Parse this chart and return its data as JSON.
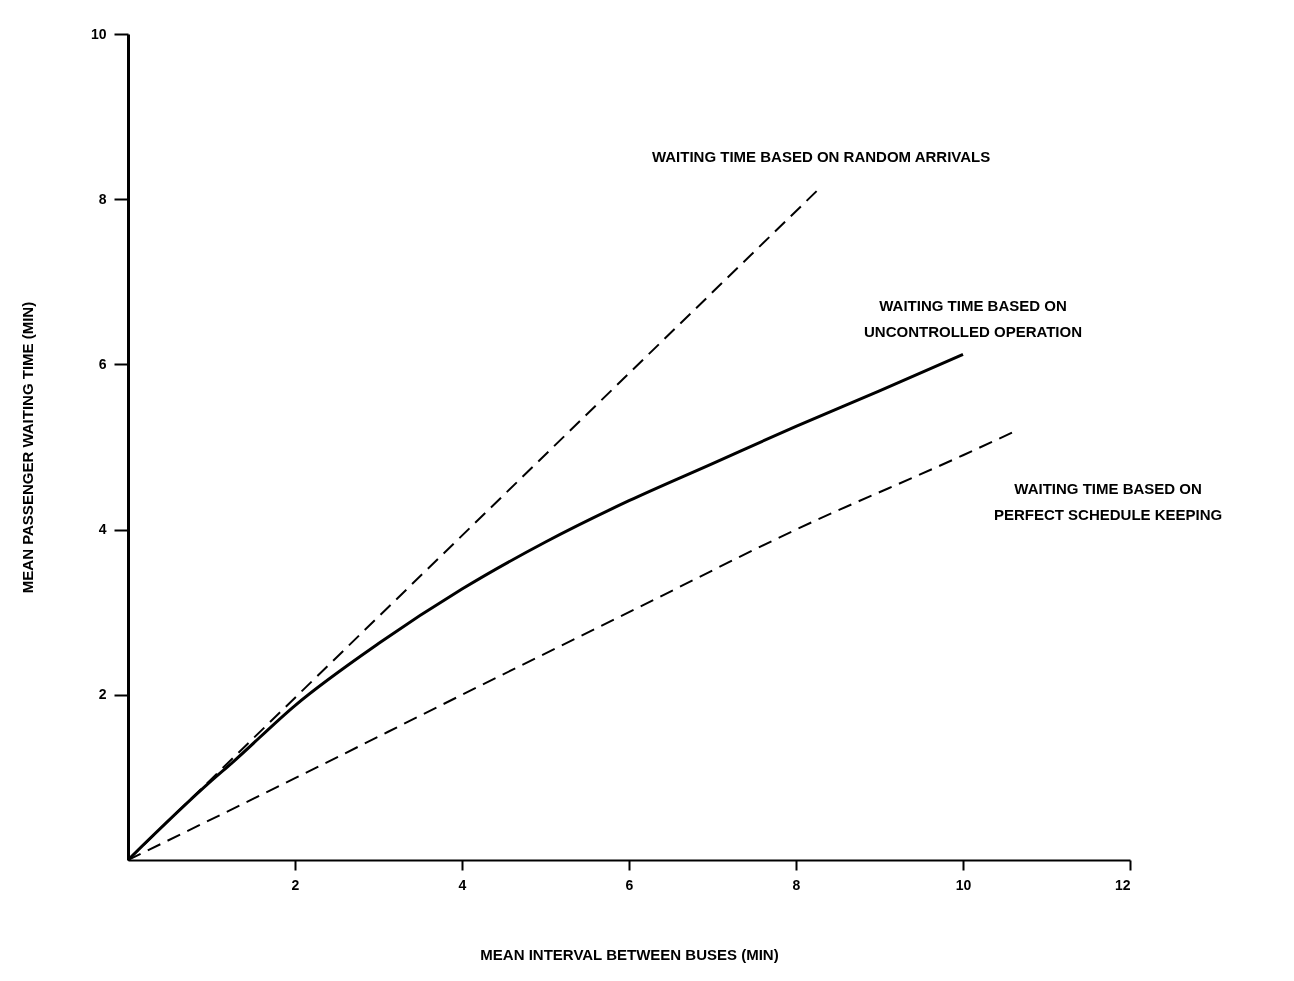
{
  "chart_data": {
    "type": "line",
    "xlabel": "MEAN INTERVAL BETWEEN BUSES (MIN)",
    "ylabel": "MEAN PASSENGER WAITING TIME (MIN)",
    "xlim": [
      0,
      12
    ],
    "xticks": [
      2,
      4,
      6,
      8,
      10,
      12
    ],
    "ylim": [
      0,
      10
    ],
    "yticks": [
      2,
      4,
      6,
      8,
      10
    ],
    "grid": false,
    "legend": false,
    "marker": "none",
    "series": [
      {
        "name": "WAITING TIME BASED ON RANDOM ARRIVALS",
        "color": "#000000",
        "line_style": "dashed",
        "x": [
          0,
          8.3
        ],
        "values": [
          0,
          8.15
        ]
      },
      {
        "name": "WAITING TIME BASED ON\nUNCONTROLLED OPERATION",
        "color": "#000000",
        "line_style": "solid",
        "x": [
          0,
          1,
          1.25,
          2,
          3,
          4,
          5,
          6,
          7,
          8,
          9,
          10
        ],
        "values": [
          0,
          0.96,
          1.18,
          1.87,
          2.62,
          3.28,
          3.85,
          4.35,
          4.8,
          5.25,
          5.68,
          6.12
        ]
      },
      {
        "name": "WAITING TIME BASED ON\nPERFECT SCHEDULE KEEPING",
        "color": "#000000",
        "line_style": "dashed",
        "x": [
          0,
          2,
          4,
          6,
          8,
          10,
          10.6
        ],
        "values": [
          0,
          0.99,
          2.0,
          3.0,
          4.0,
          4.9,
          5.18
        ]
      }
    ]
  }
}
